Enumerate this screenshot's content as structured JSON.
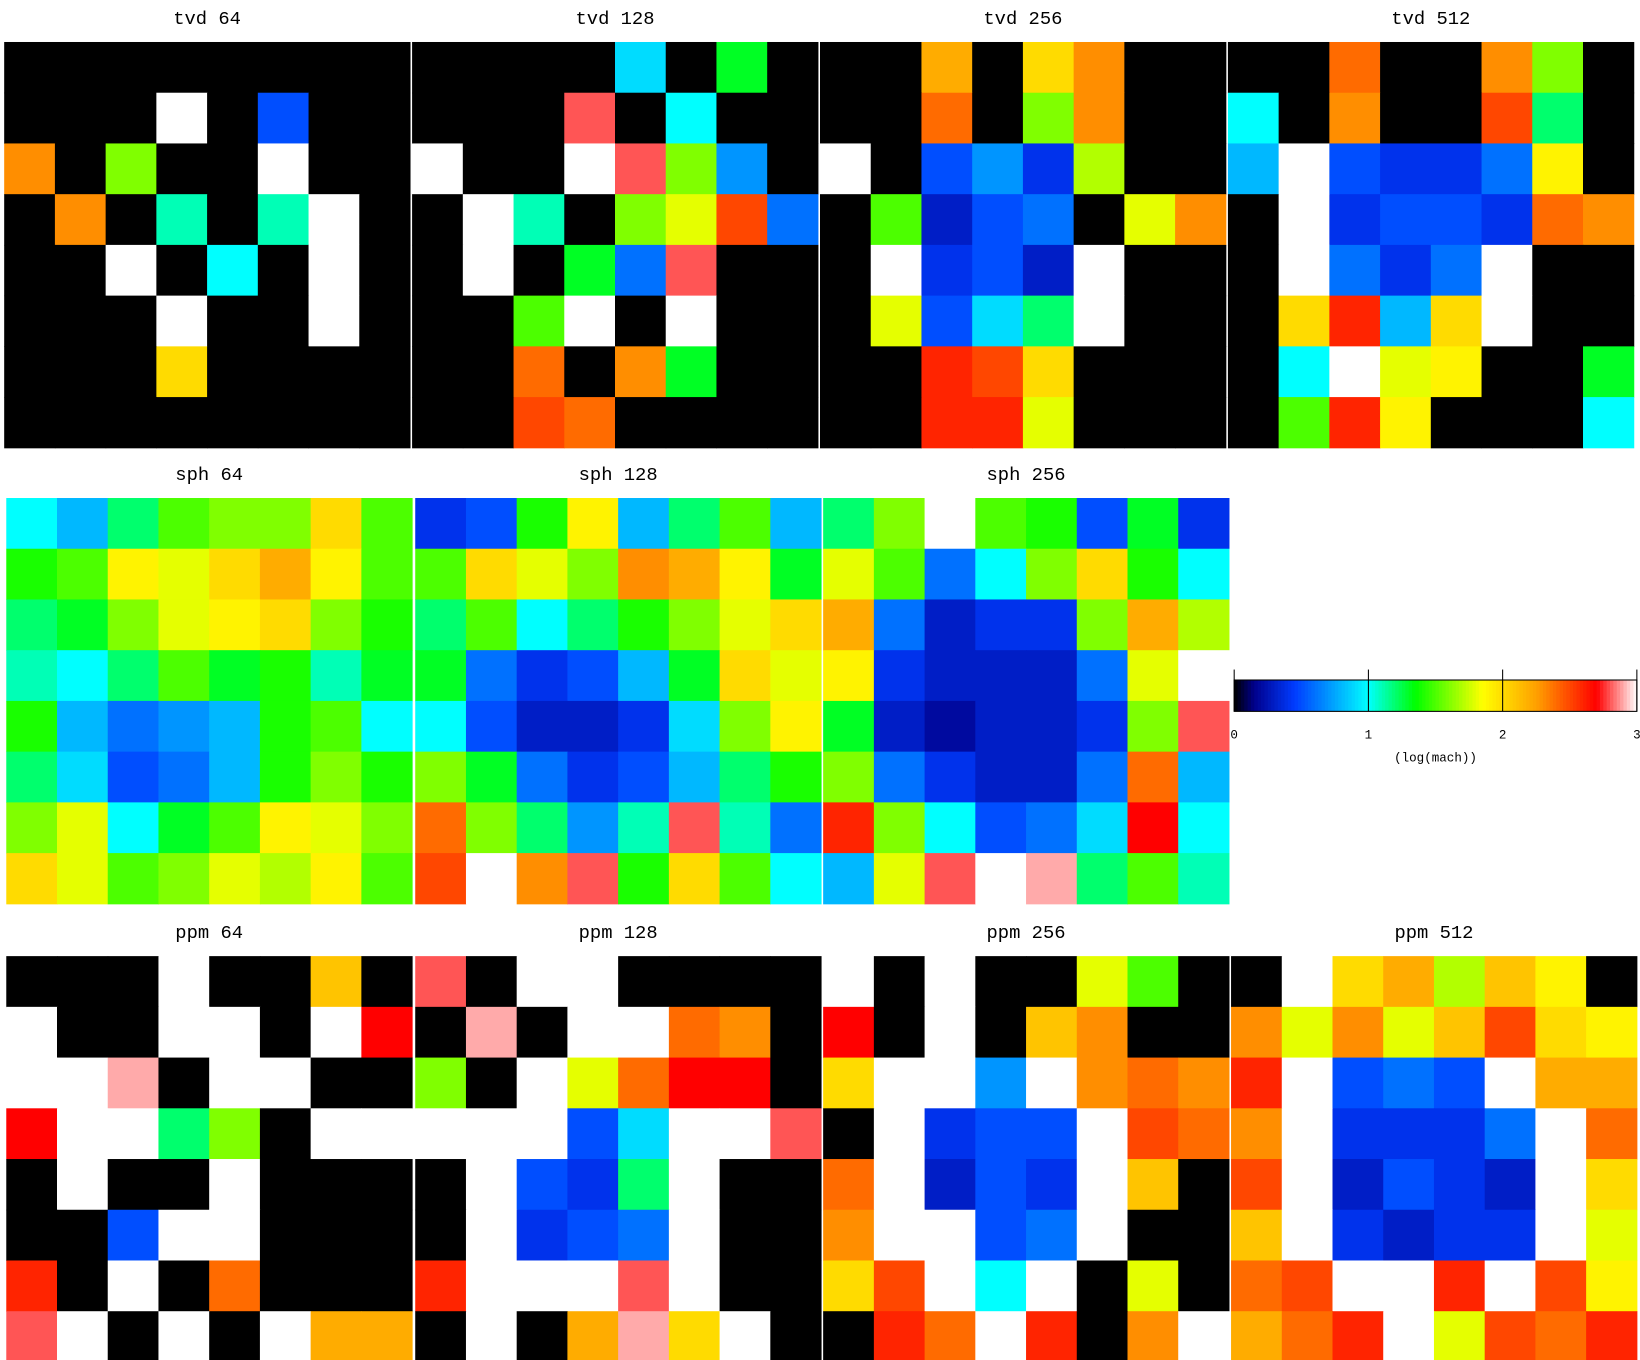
{
  "chart_data": [
    {
      "type": "heatmap",
      "title": "tvd 64",
      "values": [
        [
          0,
          0,
          0,
          0,
          0,
          0,
          0,
          0
        ],
        [
          0,
          0,
          0,
          3,
          0,
          0.5,
          0,
          0
        ],
        [
          2.3,
          0,
          1.6,
          0,
          0,
          3,
          0,
          0
        ],
        [
          0,
          2.3,
          0,
          1.1,
          0,
          1.1,
          3,
          0
        ],
        [
          0,
          0,
          3,
          0,
          1.0,
          0,
          3,
          0
        ],
        [
          0,
          0,
          0,
          3,
          0,
          0,
          3,
          0
        ],
        [
          0,
          0,
          0,
          2.0,
          0,
          0,
          0,
          0
        ],
        [
          0,
          0,
          0,
          0,
          0,
          0,
          0,
          0
        ]
      ]
    },
    {
      "type": "heatmap",
      "title": "tvd 128",
      "values": [
        [
          0,
          0,
          0,
          0,
          0.9,
          0,
          1.3,
          0
        ],
        [
          0,
          0,
          0,
          2.8,
          0,
          1.0,
          0,
          0
        ],
        [
          3,
          0,
          0,
          3,
          2.8,
          1.6,
          0.7,
          0
        ],
        [
          0,
          3,
          1.1,
          0,
          1.6,
          1.8,
          2.5,
          0.6
        ],
        [
          0,
          3,
          0,
          1.3,
          0.6,
          2.8,
          0,
          0
        ],
        [
          0,
          0,
          1.5,
          3,
          0,
          3,
          0,
          0
        ],
        [
          0,
          0,
          2.4,
          0,
          2.3,
          1.3,
          0,
          0
        ],
        [
          0,
          0,
          2.5,
          2.4,
          0,
          0,
          0,
          0
        ]
      ]
    },
    {
      "type": "heatmap",
      "title": "tvd 256",
      "values": [
        [
          0,
          0,
          2.2,
          0,
          2.0,
          2.3,
          0,
          0
        ],
        [
          0,
          0,
          2.4,
          0,
          1.6,
          2.3,
          0,
          0
        ],
        [
          3,
          0,
          0.5,
          0.7,
          0.4,
          1.7,
          0,
          0
        ],
        [
          0,
          1.5,
          0.3,
          0.5,
          0.6,
          0,
          1.8,
          2.3
        ],
        [
          0,
          3,
          0.4,
          0.5,
          0.3,
          3,
          0,
          0
        ],
        [
          0,
          1.8,
          0.5,
          0.9,
          1.2,
          3,
          0,
          0
        ],
        [
          0,
          0,
          2.6,
          2.5,
          2.0,
          0,
          0,
          0
        ],
        [
          0,
          0,
          2.6,
          2.6,
          1.8,
          0,
          0,
          0
        ]
      ]
    },
    {
      "type": "heatmap",
      "title": "tvd 512",
      "values": [
        [
          0,
          0,
          2.4,
          0,
          0,
          2.3,
          1.6,
          0
        ],
        [
          1.0,
          0,
          2.3,
          0,
          0,
          2.5,
          1.2,
          0
        ],
        [
          0.8,
          3,
          0.5,
          0.4,
          0.4,
          0.6,
          1.9,
          0
        ],
        [
          0,
          3,
          0.4,
          0.5,
          0.5,
          0.4,
          2.4,
          2.3
        ],
        [
          0,
          3,
          0.6,
          0.4,
          0.6,
          3,
          0,
          0
        ],
        [
          0,
          2.0,
          2.6,
          0.8,
          2.0,
          3,
          0,
          0
        ],
        [
          0,
          1.0,
          3,
          1.8,
          1.9,
          0,
          0,
          1.3
        ],
        [
          0,
          1.5,
          2.6,
          1.9,
          0,
          0,
          0,
          1.0
        ]
      ]
    },
    {
      "type": "heatmap",
      "title": "sph 64",
      "values": [
        [
          1.0,
          0.8,
          1.2,
          1.5,
          1.6,
          1.6,
          2.0,
          1.5
        ],
        [
          1.4,
          1.5,
          1.9,
          1.8,
          2.0,
          2.2,
          1.9,
          1.5
        ],
        [
          1.2,
          1.3,
          1.6,
          1.8,
          1.9,
          2.0,
          1.6,
          1.4
        ],
        [
          1.1,
          1.0,
          1.2,
          1.5,
          1.3,
          1.4,
          1.1,
          1.3
        ],
        [
          1.4,
          0.8,
          0.6,
          0.7,
          0.8,
          1.4,
          1.5,
          1.0
        ],
        [
          1.2,
          0.9,
          0.5,
          0.6,
          0.8,
          1.4,
          1.6,
          1.4
        ],
        [
          1.6,
          1.8,
          1.0,
          1.3,
          1.5,
          1.9,
          1.8,
          1.6
        ],
        [
          2.0,
          1.8,
          1.5,
          1.6,
          1.8,
          1.7,
          1.9,
          1.5
        ]
      ]
    },
    {
      "type": "heatmap",
      "title": "sph 128",
      "values": [
        [
          0.4,
          0.5,
          1.4,
          1.9,
          0.8,
          1.2,
          1.5,
          0.8
        ],
        [
          1.5,
          2.0,
          1.8,
          1.6,
          2.3,
          2.2,
          1.9,
          1.3
        ],
        [
          1.2,
          1.5,
          1.0,
          1.2,
          1.4,
          1.6,
          1.8,
          2.0
        ],
        [
          1.3,
          0.6,
          0.4,
          0.5,
          0.8,
          1.3,
          2.0,
          1.8
        ],
        [
          1.0,
          0.5,
          0.3,
          0.3,
          0.4,
          0.9,
          1.6,
          1.9
        ],
        [
          1.6,
          1.3,
          0.6,
          0.4,
          0.5,
          0.8,
          1.2,
          1.4
        ],
        [
          2.4,
          1.6,
          1.2,
          0.7,
          1.1,
          2.8,
          1.1,
          0.6
        ],
        [
          2.5,
          3,
          2.3,
          2.8,
          1.4,
          2.0,
          1.5,
          1.0
        ]
      ]
    },
    {
      "type": "heatmap",
      "title": "sph 256",
      "values": [
        [
          1.2,
          1.6,
          3,
          1.5,
          1.4,
          0.5,
          1.3,
          0.4
        ],
        [
          1.8,
          1.5,
          0.6,
          1.0,
          1.6,
          2.0,
          1.4,
          1.0
        ],
        [
          2.2,
          0.6,
          0.3,
          0.4,
          0.4,
          1.6,
          2.2,
          1.7
        ],
        [
          1.9,
          0.4,
          0.3,
          0.3,
          0.3,
          0.6,
          1.8,
          3
        ],
        [
          1.3,
          0.3,
          0.2,
          0.3,
          0.3,
          0.4,
          1.6,
          2.8
        ],
        [
          1.6,
          0.6,
          0.4,
          0.3,
          0.3,
          0.6,
          2.4,
          0.8
        ],
        [
          2.6,
          1.6,
          1.0,
          0.5,
          0.6,
          0.9,
          2.7,
          1.0
        ],
        [
          0.8,
          1.8,
          2.8,
          3,
          2.9,
          1.2,
          1.5,
          1.1
        ]
      ]
    },
    {
      "type": "heatmap",
      "title": "ppm 64",
      "values": [
        [
          0,
          0,
          0,
          3,
          0,
          0,
          2.1,
          0
        ],
        [
          3,
          0,
          0,
          3,
          3,
          0,
          3,
          2.7
        ],
        [
          3,
          3,
          2.9,
          0,
          3,
          3,
          0,
          0
        ],
        [
          2.7,
          3,
          3,
          1.2,
          1.6,
          0,
          3,
          3
        ],
        [
          0,
          3,
          0,
          0,
          3,
          0,
          0,
          0
        ],
        [
          0,
          0,
          0.5,
          3,
          3,
          0,
          0,
          0
        ],
        [
          2.6,
          0,
          3,
          0,
          2.4,
          0,
          0,
          0
        ],
        [
          2.8,
          3,
          0,
          3,
          0,
          3,
          2.2,
          2.2
        ]
      ]
    },
    {
      "type": "heatmap",
      "title": "ppm 128",
      "values": [
        [
          2.8,
          0,
          3,
          3,
          0,
          0,
          0,
          0
        ],
        [
          0,
          2.9,
          0,
          3,
          3,
          2.4,
          2.3,
          0
        ],
        [
          1.6,
          0,
          3,
          1.8,
          2.4,
          2.7,
          2.7,
          0
        ],
        [
          3,
          3,
          3,
          0.5,
          0.9,
          3,
          3,
          2.8
        ],
        [
          0,
          3,
          0.5,
          0.4,
          1.2,
          3,
          0,
          0
        ],
        [
          0,
          3,
          0.4,
          0.5,
          0.6,
          3,
          0,
          0
        ],
        [
          2.6,
          3,
          3,
          3,
          2.8,
          3,
          0,
          0
        ],
        [
          0,
          3,
          0,
          2.2,
          2.9,
          2.0,
          3,
          0
        ]
      ]
    },
    {
      "type": "heatmap",
      "title": "ppm 256",
      "values": [
        [
          3,
          0,
          3,
          0,
          0,
          1.8,
          1.5,
          0
        ],
        [
          2.7,
          0,
          3,
          0,
          2.1,
          2.3,
          0,
          0
        ],
        [
          2.0,
          3,
          3,
          0.7,
          3,
          2.3,
          2.4,
          2.3
        ],
        [
          0,
          3,
          0.4,
          0.5,
          0.5,
          3,
          2.5,
          2.4
        ],
        [
          2.4,
          3,
          0.3,
          0.5,
          0.4,
          3,
          2.1,
          0
        ],
        [
          2.3,
          3,
          3,
          0.5,
          0.6,
          3,
          0,
          0
        ],
        [
          2.0,
          2.5,
          3,
          1.0,
          3,
          0,
          1.8,
          0
        ],
        [
          0,
          2.6,
          2.4,
          3,
          2.6,
          0,
          2.3,
          3
        ]
      ]
    },
    {
      "type": "heatmap",
      "title": "ppm 512",
      "values": [
        [
          0,
          3,
          2.0,
          2.2,
          1.7,
          2.1,
          1.9,
          0
        ],
        [
          2.3,
          1.8,
          2.3,
          1.8,
          2.1,
          2.5,
          2.0,
          1.9
        ],
        [
          2.6,
          3,
          0.5,
          0.6,
          0.5,
          3,
          2.2,
          2.2
        ],
        [
          2.3,
          3,
          0.4,
          0.4,
          0.4,
          0.6,
          3,
          2.4
        ],
        [
          2.5,
          3,
          0.3,
          0.5,
          0.4,
          0.3,
          3,
          2.0
        ],
        [
          2.1,
          3,
          0.4,
          0.3,
          0.4,
          0.4,
          3,
          1.8
        ],
        [
          2.4,
          2.5,
          3,
          3,
          2.6,
          3,
          2.5,
          1.9
        ],
        [
          2.2,
          2.4,
          2.6,
          3,
          1.8,
          2.5,
          2.4,
          2.6
        ]
      ]
    },
    {
      "type": "colorbar",
      "label": "(log(mach))",
      "xlim": [
        0,
        3
      ],
      "xticks": [
        0,
        1,
        2,
        3
      ]
    }
  ]
}
